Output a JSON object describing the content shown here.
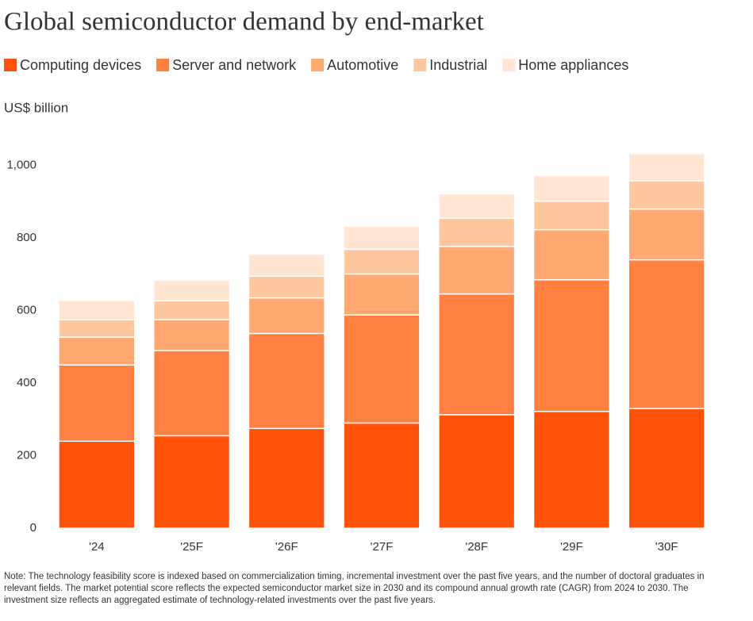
{
  "chart_data": {
    "type": "stacked_bar",
    "title": "Global semiconductor demand by end-market",
    "y_label": "US$ billion",
    "categories": [
      "'24",
      "'25F",
      "'26F",
      "'27F",
      "'28F",
      "'29F",
      "'30F"
    ],
    "series": [
      {
        "name": "Computing devices",
        "color": "#ff5208",
        "values": [
          240,
          255,
          275,
          290,
          313,
          322,
          330
        ]
      },
      {
        "name": "Server and network",
        "color": "#ff8040",
        "values": [
          210,
          235,
          262,
          298,
          333,
          363,
          410
        ]
      },
      {
        "name": "Automotive",
        "color": "#ffa872",
        "values": [
          77,
          85,
          98,
          113,
          131,
          138,
          140
        ]
      },
      {
        "name": "Industrial",
        "color": "#ffc79e",
        "values": [
          48,
          52,
          60,
          68,
          78,
          79,
          78
        ]
      },
      {
        "name": "Home appliances",
        "color": "#ffe5d2",
        "values": [
          53,
          57,
          60,
          64,
          67,
          70,
          75
        ]
      }
    ],
    "ylim": [
      0,
      1100
    ],
    "yticks": [
      0,
      200,
      400,
      600,
      800,
      {
        "value": 1000,
        "label": "1,000"
      }
    ],
    "grid": false,
    "note": "Note: The technology feasibility score is indexed based on commercialization timing, incremental investment over the past five years, and the number of doctoral graduates in relevant fields. The market potential score reflects the expected semiconductor market size in 2030 and its compound annual growth rate (CAGR) from 2024 to 2030. The investment size reflects an aggregated estimate of technology-related investments over the past five years."
  }
}
